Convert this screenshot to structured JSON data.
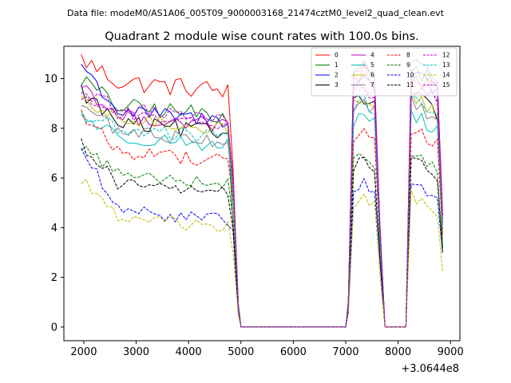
{
  "figure": {
    "suptitle": "Data file: modeM0/AS1A06_005T09_9000003168_21474cztM0_level2_quad_clean.evt"
  },
  "chart_data": {
    "type": "line",
    "title": "Quadrant 2 module wise count rates with 100.0s bins.",
    "xlabel": "",
    "ylabel": "",
    "x_offset_label": "+3.0644e8",
    "xlim": [
      1620,
      9180
    ],
    "ylim": [
      -0.55,
      11.3
    ],
    "xticks": [
      2000,
      3000,
      4000,
      5000,
      6000,
      7000,
      8000,
      9000
    ],
    "xtick_labels": [
      "2000",
      "3000",
      "4000",
      "5000",
      "6000",
      "7000",
      "8000",
      "9000"
    ],
    "yticks": [
      0,
      2,
      4,
      6,
      8,
      10
    ],
    "ytick_labels": [
      "0",
      "2",
      "4",
      "6",
      "8",
      "10"
    ],
    "legend_position": "top-right",
    "segments": [
      {
        "x_start": 1950,
        "x_end": 4750,
        "step": 100
      },
      {
        "x_start": 4850,
        "x_end": 4950,
        "step": 100
      },
      {
        "x_start": 5000,
        "x_end": 7000,
        "step": 100
      },
      {
        "x_start": 7050,
        "x_end": 7650,
        "step": 100
      },
      {
        "x_start": 7750,
        "x_end": 8150,
        "step": 100
      },
      {
        "x_start": 8250,
        "x_end": 8850,
        "step": 100
      }
    ],
    "series": [
      {
        "name": "0",
        "color": "#ff0000",
        "dash": "solid",
        "level": 10.0,
        "edge": 0.8,
        "jitter": 0.4,
        "peak": 10.2,
        "tail": 6.2
      },
      {
        "name": "1",
        "color": "#008000",
        "dash": "solid",
        "level": 9.0,
        "edge": 1.0,
        "jitter": 0.35,
        "peak": 10.5,
        "tail": 4.2
      },
      {
        "name": "2",
        "color": "#0000ff",
        "dash": "solid",
        "level": 8.8,
        "edge": 1.8,
        "jitter": 0.3,
        "peak": 10.2,
        "tail": 6.0
      },
      {
        "name": "3",
        "color": "#000000",
        "dash": "solid",
        "level": 8.3,
        "edge": 1.2,
        "jitter": 0.35,
        "peak": 9.3,
        "tail": 5.6
      },
      {
        "name": "4",
        "color": "#bf00bf",
        "dash": "solid",
        "level": 8.6,
        "edge": 1.2,
        "jitter": 0.3,
        "peak": 10.6,
        "tail": 5.8
      },
      {
        "name": "5",
        "color": "#00bfbf",
        "dash": "solid",
        "level": 7.8,
        "edge": 0.7,
        "jitter": 0.3,
        "peak": 8.6,
        "tail": 5.2
      },
      {
        "name": "6",
        "color": "#bfbf00",
        "dash": "solid",
        "level": 8.5,
        "edge": 0.5,
        "jitter": 0.3,
        "peak": 9.3,
        "tail": 5.8
      },
      {
        "name": "7",
        "color": "#808080",
        "dash": "solid",
        "level": 8.0,
        "edge": 1.0,
        "jitter": 0.3,
        "peak": 9.0,
        "tail": 5.5
      },
      {
        "name": "8",
        "color": "#ff0000",
        "dash": "dashed",
        "level": 7.2,
        "edge": 1.4,
        "jitter": 0.3,
        "peak": 8.0,
        "tail": 5.0
      },
      {
        "name": "9",
        "color": "#008000",
        "dash": "dashed",
        "level": 6.3,
        "edge": 1.0,
        "jitter": 0.25,
        "peak": 7.0,
        "tail": 4.2
      },
      {
        "name": "10",
        "color": "#0000ff",
        "dash": "dashed",
        "level": 4.8,
        "edge": 2.4,
        "jitter": 0.25,
        "peak": 5.8,
        "tail": 4.0
      },
      {
        "name": "11",
        "color": "#000000",
        "dash": "dashed",
        "level": 5.9,
        "edge": 1.5,
        "jitter": 0.25,
        "peak": 6.8,
        "tail": 4.0
      },
      {
        "name": "12",
        "color": "#bf00bf",
        "dash": "dashed",
        "level": 8.7,
        "edge": 0.6,
        "jitter": 0.3,
        "peak": 9.8,
        "tail": 5.8
      },
      {
        "name": "13",
        "color": "#00bfbf",
        "dash": "dashed",
        "level": 8.1,
        "edge": 0.5,
        "jitter": 0.3,
        "peak": 9.1,
        "tail": 5.4
      },
      {
        "name": "14",
        "color": "#bfbf00",
        "dash": "dashed",
        "level": 4.5,
        "edge": 1.5,
        "jitter": 0.25,
        "peak": 5.3,
        "tail": 3.0
      },
      {
        "name": "15",
        "color": "#bf00bf",
        "dash": "dashed",
        "level": 8.9,
        "edge": 0.6,
        "jitter": 0.3,
        "peak": 9.7,
        "tail": 6.0
      }
    ]
  }
}
